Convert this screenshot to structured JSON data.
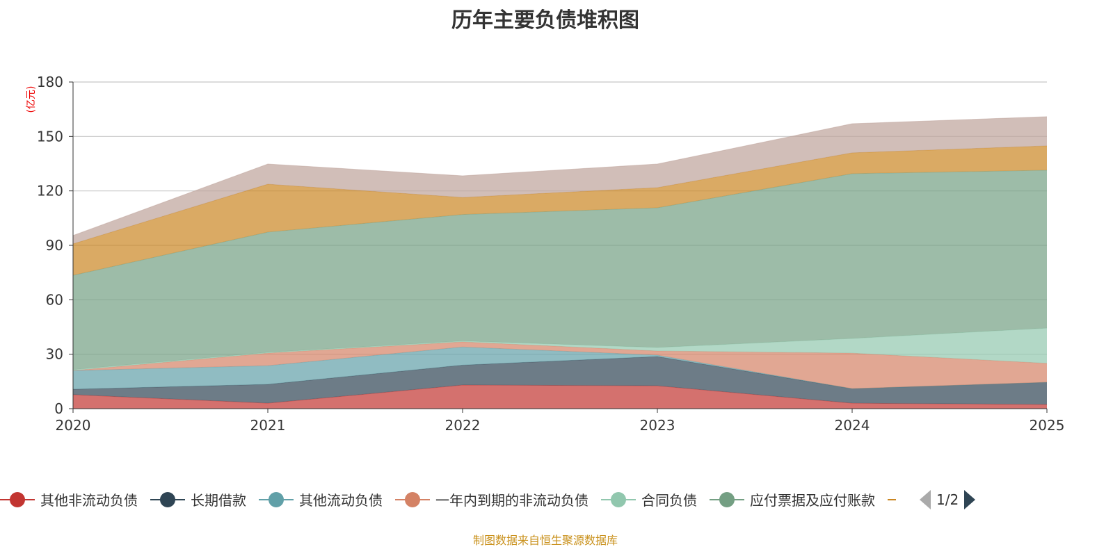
{
  "chart_data": {
    "type": "area",
    "stacked": true,
    "title": "历年主要负债堆积图",
    "ylabel": "(亿元)",
    "xlabel": "",
    "ylim": [
      0,
      180
    ],
    "yticks": [
      "0",
      "30",
      "60",
      "90",
      "120",
      "150",
      "180"
    ],
    "categories": [
      "2020",
      "2021",
      "2022",
      "2023",
      "2024",
      "2025"
    ],
    "grid": true,
    "legend_position": "bottom",
    "series": [
      {
        "name": "其他非流动负债",
        "color": "#c23531",
        "values": [
          7.7,
          3,
          13,
          12.6,
          3,
          2.3
        ]
      },
      {
        "name": "长期借款",
        "color": "#2f4554",
        "values": [
          3,
          10.4,
          11,
          16.1,
          8,
          12.2
        ]
      },
      {
        "name": "其他流动负债",
        "color": "#61a0a8",
        "values": [
          10.3,
          10.3,
          10,
          0.8,
          0,
          0
        ]
      },
      {
        "name": "一年内到期的非流动负债",
        "color": "#d48265",
        "values": [
          0,
          6.9,
          2.8,
          2.3,
          19.6,
          10.5
        ]
      },
      {
        "name": "合同负债",
        "color": "#91c7ae",
        "values": [
          0.5,
          0.4,
          0.5,
          1.9,
          8.1,
          19.4
        ]
      },
      {
        "name": "应付票据及应付账款",
        "color": "#749f83",
        "values": [
          52,
          66.3,
          69.7,
          77,
          90.8,
          87
        ]
      },
      {
        "name": "",
        "color": "#ca8622",
        "values": [
          17.3,
          26.4,
          9.4,
          11.1,
          11.5,
          13.4
        ]
      },
      {
        "name": "",
        "color": "#bda29a",
        "values": [
          4.6,
          11.1,
          11.9,
          13,
          16,
          16.1
        ]
      }
    ]
  },
  "legend": {
    "page": "1/2"
  },
  "source": "制图数据来自恒生聚源数据库"
}
